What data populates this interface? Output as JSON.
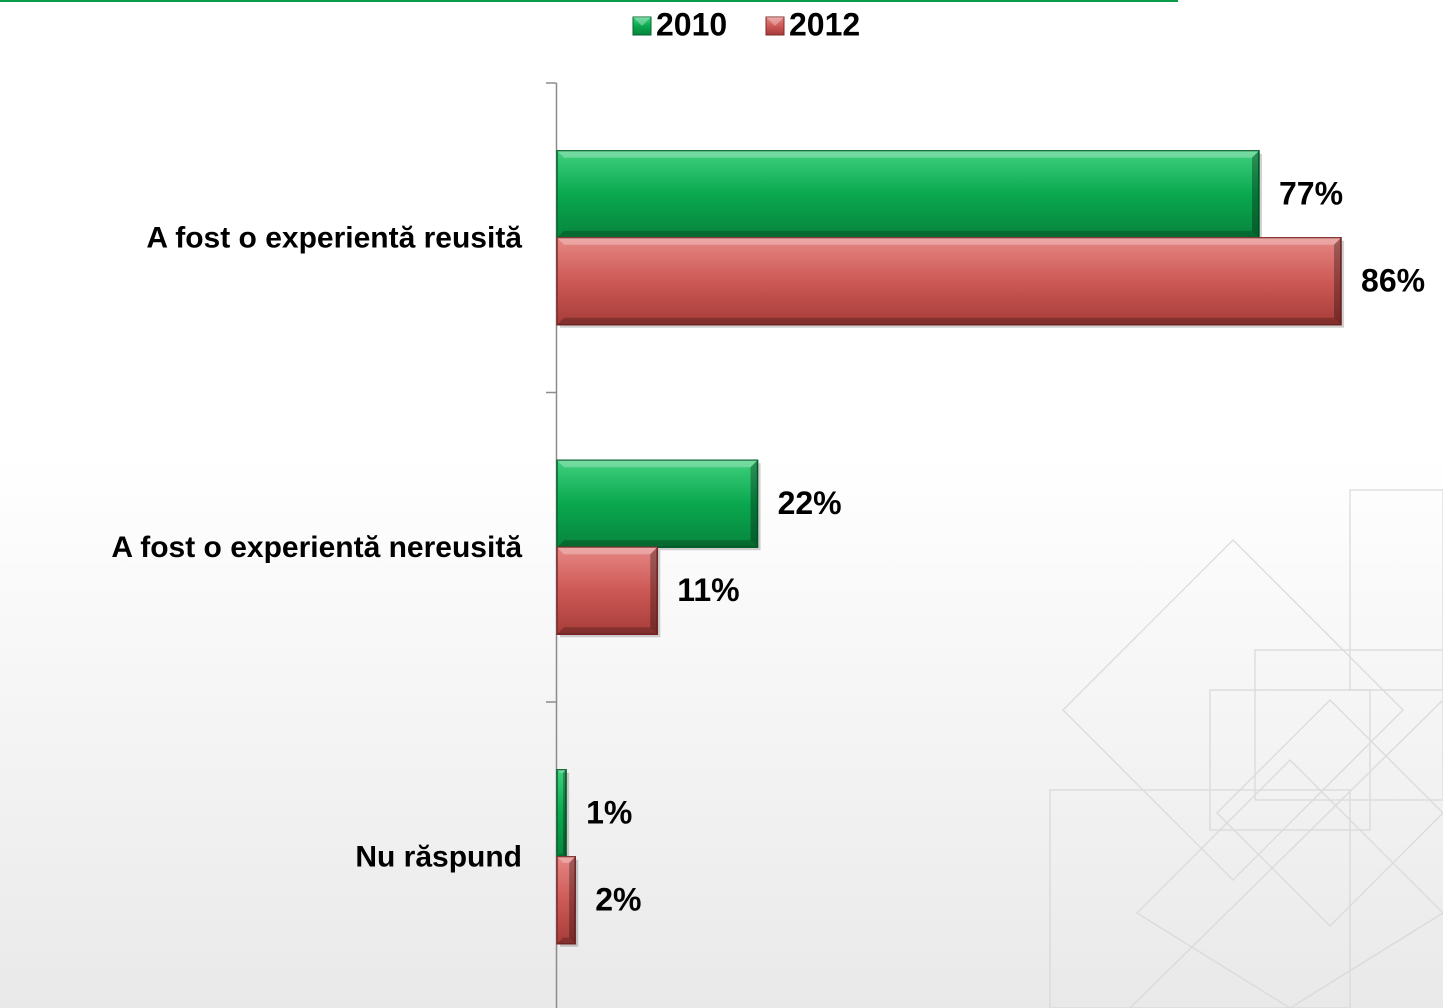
{
  "chart_data": {
    "type": "bar",
    "orientation": "horizontal",
    "categories": [
      "A fost o experientă reusită",
      "A fost o experientă nereusită",
      "Nu răspund"
    ],
    "series": [
      {
        "name": "2010",
        "values": [
          77,
          22,
          1
        ],
        "labels": [
          "77%",
          "22%",
          "1%"
        ],
        "color": "#0aa84f"
      },
      {
        "name": "2012",
        "values": [
          86,
          11,
          2
        ],
        "labels": [
          "86%",
          "11%",
          "2%"
        ],
        "color": "#cd5955"
      }
    ],
    "xlim": [
      0,
      100
    ],
    "legend_position": "top",
    "grid": false,
    "title": "",
    "xlabel": "",
    "ylabel": ""
  }
}
